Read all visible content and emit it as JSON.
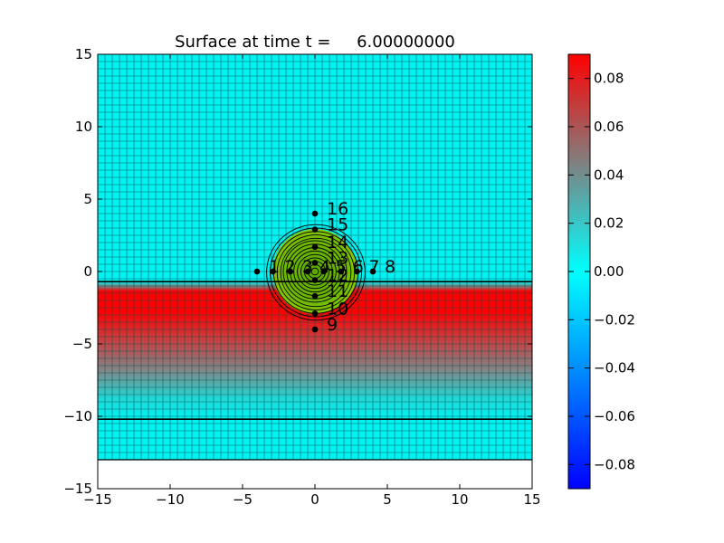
{
  "chart_data": {
    "type": "heatmap",
    "title": "Surface at time t =     6.00000000",
    "xlim": [
      -15,
      15
    ],
    "ylim": [
      -15,
      15
    ],
    "x_ticks": [
      "−15",
      "−10",
      "−5",
      "0",
      "5",
      "10",
      "15"
    ],
    "y_ticks": [
      "−15",
      "−10",
      "−5",
      "0",
      "5",
      "10",
      "15"
    ],
    "grid_cell_size": 0.5,
    "domain_bottom": -13,
    "band_lines_y": [
      -0.7,
      -10.2
    ],
    "red_band_y": [
      -1.9,
      -3.9
    ],
    "red_fade_to_y": -10.2,
    "hump": {
      "center": [
        0,
        0
      ],
      "radius": 3.4,
      "contour_levels": 14
    },
    "gauges": [
      {
        "id": 1,
        "label": "1",
        "x": -4,
        "y": 0
      },
      {
        "id": 2,
        "label": "2",
        "x": -2.9,
        "y": 0
      },
      {
        "id": 3,
        "label": "3",
        "x": -1.7,
        "y": 0
      },
      {
        "id": 4,
        "label": "4",
        "x": -0.5,
        "y": 0
      },
      {
        "id": 5,
        "label": "5",
        "x": 0.6,
        "y": 0
      },
      {
        "id": 6,
        "label": "6",
        "x": 1.8,
        "y": 0
      },
      {
        "id": 7,
        "label": "7",
        "x": 2.9,
        "y": 0
      },
      {
        "id": 8,
        "label": "8",
        "x": 4,
        "y": 0
      },
      {
        "id": 9,
        "label": "9",
        "x": 0,
        "y": -4
      },
      {
        "id": 10,
        "label": "10",
        "x": 0,
        "y": -2.9
      },
      {
        "id": 11,
        "label": "11",
        "x": 0,
        "y": -1.7
      },
      {
        "id": 12,
        "label": "12",
        "x": 0,
        "y": -0.6
      },
      {
        "id": 13,
        "label": "13",
        "x": 0,
        "y": 0.6
      },
      {
        "id": 14,
        "label": "14",
        "x": 0,
        "y": 1.7
      },
      {
        "id": 15,
        "label": "15",
        "x": 0,
        "y": 2.9
      },
      {
        "id": 16,
        "label": "16",
        "x": 0,
        "y": 4
      }
    ],
    "colorbar": {
      "range": [
        -0.09,
        0.09
      ],
      "ticks": [
        -0.08,
        -0.06,
        -0.04,
        -0.02,
        0.0,
        0.02,
        0.04,
        0.06,
        0.08
      ],
      "tick_labels": [
        "−0.08",
        "−0.06",
        "−0.04",
        "−0.02",
        "0.00",
        "0.02",
        "0.04",
        "0.06",
        "0.08"
      ],
      "colors": [
        "#0000ff",
        "#00ffff",
        "#808080",
        "#ff0000"
      ]
    },
    "colors": {
      "water": "#00f2f2",
      "grid": "#0a5050",
      "land": "#66b200",
      "wave": "#ff0000",
      "contour": "#000000"
    }
  }
}
